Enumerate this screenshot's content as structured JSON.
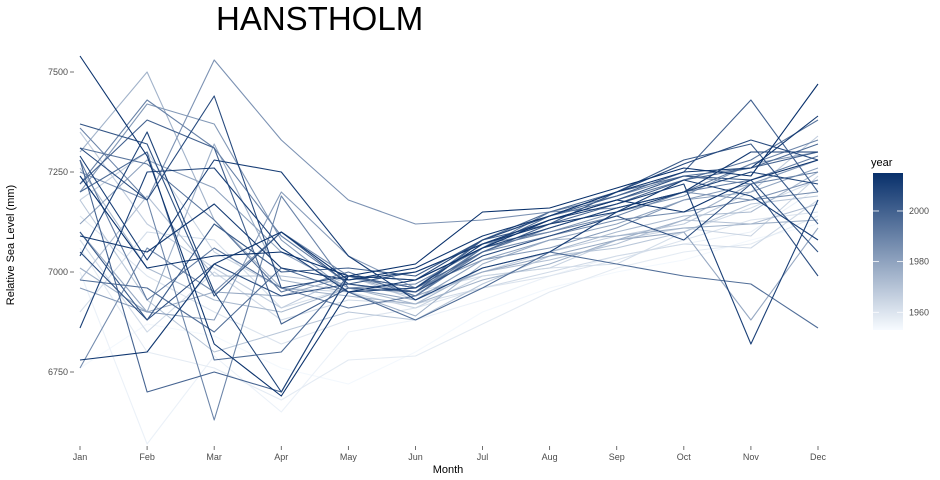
{
  "chart_data": {
    "type": "line",
    "title": "HANSTHOLM",
    "xlabel": "Month",
    "ylabel": "Relative Sea Level (mm)",
    "categories": [
      "Jan",
      "Feb",
      "Mar",
      "Apr",
      "May",
      "Jun",
      "Jul",
      "Aug",
      "Sep",
      "Oct",
      "Nov",
      "Dec"
    ],
    "ylim": [
      6580,
      7580
    ],
    "yticks": [
      6750,
      7000,
      7250,
      7500
    ],
    "grid": false,
    "legend": {
      "title": "year",
      "placement": "right",
      "type": "colorbar",
      "range": [
        1953,
        2015
      ],
      "ticks": [
        1960,
        1980,
        2000
      ],
      "colors": [
        "#f7fbff",
        "#08306b"
      ]
    },
    "series": [
      {
        "year": 1954,
        "values": [
          6760,
          6870,
          6840,
          6760,
          6720,
          6800,
          6900,
          6960,
          7000,
          7030,
          7080,
          7120
        ]
      },
      {
        "year": 1956,
        "values": [
          7000,
          6570,
          6790,
          6650,
          6850,
          6880,
          6930,
          6990,
          7040,
          7070,
          7100,
          7210
        ]
      },
      {
        "year": 1958,
        "values": [
          7060,
          6800,
          6760,
          6680,
          6780,
          6790,
          6870,
          6950,
          7010,
          7050,
          7070,
          7140
        ]
      },
      {
        "year": 1960,
        "values": [
          7140,
          6990,
          6900,
          6820,
          6880,
          6910,
          6960,
          6990,
          7030,
          7080,
          7130,
          7150
        ]
      },
      {
        "year": 1962,
        "values": [
          6900,
          7100,
          7080,
          6910,
          6960,
          6950,
          6990,
          7010,
          7020,
          7100,
          7160,
          7230
        ]
      },
      {
        "year": 1963,
        "values": [
          7080,
          6850,
          7000,
          6880,
          6930,
          6920,
          6960,
          7000,
          7040,
          7070,
          7060,
          7180
        ]
      },
      {
        "year": 1965,
        "values": [
          7180,
          7300,
          7050,
          6960,
          6950,
          6910,
          6990,
          7010,
          7080,
          7110,
          7090,
          7240
        ]
      },
      {
        "year": 1967,
        "values": [
          7350,
          7120,
          7010,
          6910,
          6990,
          6930,
          7000,
          7050,
          7090,
          7120,
          7200,
          7340
        ]
      },
      {
        "year": 1969,
        "values": [
          7180,
          6930,
          6800,
          6850,
          6900,
          6880,
          6970,
          7040,
          7060,
          7100,
          7170,
          7190
        ]
      },
      {
        "year": 1971,
        "values": [
          6980,
          7190,
          6990,
          6990,
          6970,
          6940,
          7000,
          7030,
          7070,
          7130,
          7120,
          7170
        ]
      },
      {
        "year": 1973,
        "values": [
          7260,
          7010,
          6930,
          6900,
          6960,
          6920,
          7010,
          7050,
          7100,
          7140,
          7150,
          7250
        ]
      },
      {
        "year": 1975,
        "values": [
          7300,
          7500,
          7130,
          6960,
          6940,
          6920,
          6980,
          7020,
          7080,
          7130,
          7220,
          7280
        ]
      },
      {
        "year": 1976,
        "values": [
          7010,
          6900,
          7320,
          6980,
          6950,
          6890,
          7020,
          7080,
          7090,
          7110,
          7120,
          7130
        ]
      },
      {
        "year": 1978,
        "values": [
          7100,
          6900,
          6950,
          6940,
          6990,
          6940,
          7000,
          7040,
          7080,
          7100,
          6880,
          7110
        ]
      },
      {
        "year": 1980,
        "values": [
          7120,
          7280,
          7210,
          7050,
          6960,
          6930,
          7030,
          7080,
          7120,
          7180,
          7200,
          7260
        ]
      },
      {
        "year": 1982,
        "values": [
          6960,
          6900,
          6880,
          7200,
          7040,
          6960,
          7030,
          7060,
          7110,
          7180,
          7220,
          7280
        ]
      },
      {
        "year": 1983,
        "values": [
          7200,
          7420,
          7370,
          7080,
          6950,
          6960,
          7070,
          7100,
          7150,
          7190,
          7270,
          7300
        ]
      },
      {
        "year": 1985,
        "values": [
          7250,
          7180,
          7530,
          7330,
          7180,
          7120,
          7130,
          7150,
          7160,
          7200,
          7180,
          7230
        ]
      },
      {
        "year": 1987,
        "values": [
          6760,
          7060,
          6950,
          7100,
          6990,
          6950,
          7050,
          7090,
          7130,
          7150,
          7180,
          7200
        ]
      },
      {
        "year": 1989,
        "values": [
          7360,
          7180,
          6630,
          7190,
          6960,
          6970,
          7060,
          7100,
          7140,
          7200,
          7270,
          7330
        ]
      },
      {
        "year": 1990,
        "values": [
          7220,
          7430,
          7310,
          7090,
          6970,
          6950,
          7060,
          7150,
          7190,
          7240,
          7220,
          7250
        ]
      },
      {
        "year": 1992,
        "values": [
          7280,
          6930,
          7060,
          6960,
          6910,
          6940,
          7050,
          7110,
          7160,
          7200,
          7230,
          7290
        ]
      },
      {
        "year": 1994,
        "values": [
          7310,
          7270,
          7130,
          6950,
          7000,
          6940,
          7060,
          7140,
          7180,
          7230,
          7280,
          7380
        ]
      },
      {
        "year": 1996,
        "values": [
          6980,
          6960,
          6850,
          7010,
          6950,
          6880,
          6960,
          7050,
          7020,
          6990,
          6970,
          6860
        ]
      },
      {
        "year": 1997,
        "values": [
          7200,
          7300,
          6780,
          6800,
          6990,
          6960,
          7080,
          7150,
          7200,
          7240,
          7260,
          7320
        ]
      },
      {
        "year": 1999,
        "values": [
          7280,
          6700,
          6750,
          6700,
          6990,
          6960,
          7050,
          7120,
          7170,
          7230,
          7260,
          7300
        ]
      },
      {
        "year": 2000,
        "values": [
          7220,
          7380,
          7310,
          6870,
          6960,
          6950,
          7080,
          7140,
          7190,
          7250,
          7430,
          7200
        ]
      },
      {
        "year": 2002,
        "values": [
          7100,
          6880,
          7120,
          7000,
          7010,
          6990,
          7080,
          7120,
          7200,
          7280,
          7320,
          7120
        ]
      },
      {
        "year": 2004,
        "values": [
          7370,
          7320,
          6940,
          7100,
          6970,
          7000,
          7070,
          7130,
          7180,
          7240,
          7230,
          7050
        ]
      },
      {
        "year": 2006,
        "values": [
          7050,
          6880,
          7020,
          6940,
          6970,
          6950,
          7040,
          7090,
          7140,
          7080,
          7220,
          6990
        ]
      },
      {
        "year": 2007,
        "values": [
          7310,
          7180,
          7440,
          6960,
          6990,
          6980,
          7080,
          7140,
          7200,
          7270,
          7330,
          7280
        ]
      },
      {
        "year": 2009,
        "values": [
          7040,
          7350,
          6950,
          6700,
          6990,
          6980,
          7060,
          7110,
          7160,
          7200,
          7250,
          7220
        ]
      },
      {
        "year": 2010,
        "values": [
          6860,
          7250,
          7260,
          7060,
          6950,
          6960,
          7070,
          7130,
          7170,
          7220,
          6820,
          7180
        ]
      },
      {
        "year": 2011,
        "values": [
          7290,
          7030,
          7280,
          7250,
          7040,
          6930,
          7010,
          7050,
          7150,
          7230,
          7190,
          7080
        ]
      },
      {
        "year": 2012,
        "values": [
          7090,
          7050,
          7170,
          7010,
          6980,
          7000,
          7070,
          7120,
          7150,
          7200,
          7300,
          7300
        ]
      },
      {
        "year": 2013,
        "values": [
          6780,
          6800,
          7020,
          7100,
          6980,
          7010,
          7090,
          7140,
          7200,
          7250,
          7260,
          7390
        ]
      },
      {
        "year": 2014,
        "values": [
          7540,
          7290,
          6820,
          6690,
          6950,
          6980,
          7060,
          7130,
          7180,
          7150,
          7230,
          7280
        ]
      },
      {
        "year": 2015,
        "values": [
          7240,
          7010,
          7040,
          7050,
          6990,
          7020,
          7150,
          7160,
          7210,
          7260,
          7240,
          7470
        ]
      }
    ]
  }
}
